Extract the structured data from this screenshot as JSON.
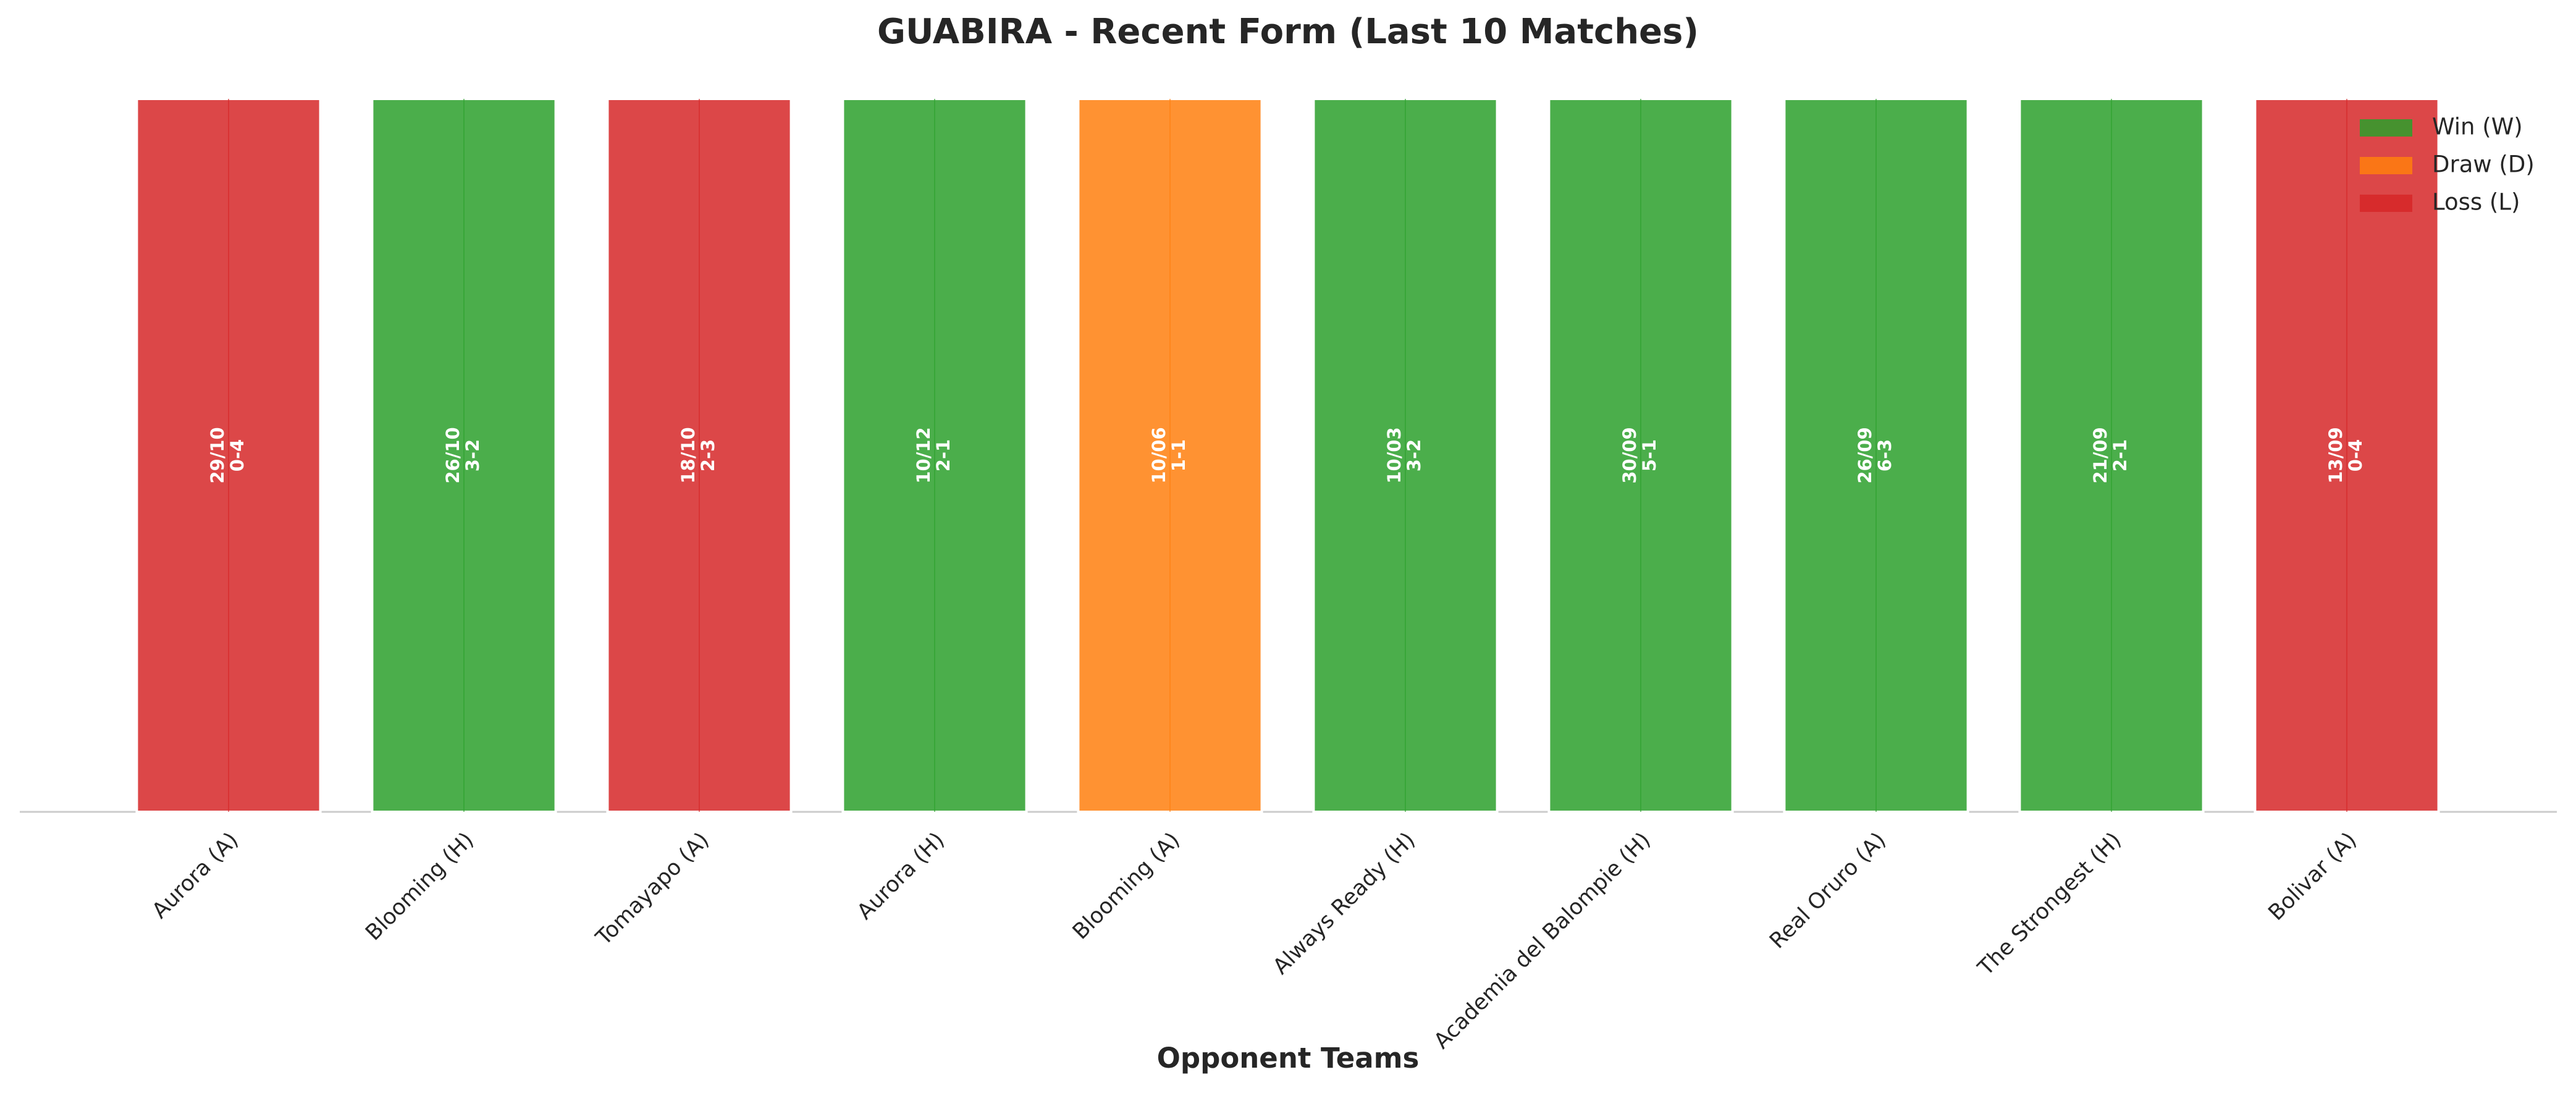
{
  "chart_data": {
    "type": "bar",
    "title": "GUABIRA - Recent Form (Last 10 Matches)",
    "x_label": "Opponent Teams",
    "categories": [
      "Aurora (A)",
      "Blooming (H)",
      "Tomayapo (A)",
      "Aurora (H)",
      "Blooming (A)",
      "Always Ready (H)",
      "Academia del Balompie (H)",
      "Real Oruro (A)",
      "The Strongest (H)",
      "Bolivar (A)"
    ],
    "values": [
      1,
      1,
      1,
      1,
      1,
      1,
      1,
      1,
      1,
      1
    ],
    "colors": [
      "#d62728",
      "#2ca02c",
      "#d62728",
      "#2ca02c",
      "#ff7f0e",
      "#2ca02c",
      "#2ca02c",
      "#2ca02c",
      "#2ca02c",
      "#d62728"
    ],
    "dates": [
      "29/10",
      "26/10",
      "18/10",
      "10/12",
      "10/06",
      "10/03",
      "30/09",
      "26/09",
      "21/09",
      "13/09"
    ],
    "scores": [
      "0-4",
      "3-2",
      "2-3",
      "2-1",
      "1-1",
      "3-2",
      "5-1",
      "6-3",
      "2-1",
      "0-4"
    ],
    "ylim": [
      0,
      1
    ],
    "legend": [
      {
        "name": "Win (W)",
        "color": "#2ca02c"
      },
      {
        "name": "Draw (D)",
        "color": "#ff7f0e"
      },
      {
        "name": "Loss (L)",
        "color": "#d62728"
      }
    ],
    "legend_position": "upper right"
  }
}
